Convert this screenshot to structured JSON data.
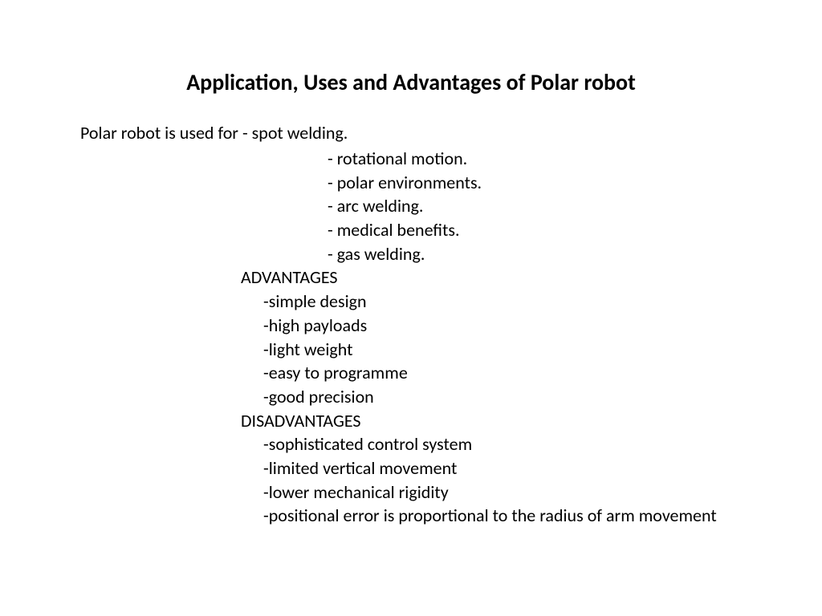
{
  "title": "Application, Uses and Advantages of Polar robot",
  "intro": "Polar robot is used for   - spot welding.",
  "uses": [
    "-  rotational motion.",
    "- polar environments.",
    "-  arc welding.",
    "- medical benefits.",
    "- gas welding."
  ],
  "advantages_head": "ADVANTAGES",
  "advantages": [
    "-simple design",
    "-high payloads",
    "-light weight",
    "-easy to programme",
    "-good precision"
  ],
  "disadvantages_head": "DISADVANTAGES",
  "disadvantages": [
    "-sophisticated control system",
    "-limited vertical movement",
    "-lower mechanical rigidity",
    "-positional error is proportional to the radius of arm movement"
  ],
  "colors": {
    "background": "#ffffff",
    "text": "#000000"
  },
  "fontsize": {
    "title": 28,
    "body": 22
  }
}
